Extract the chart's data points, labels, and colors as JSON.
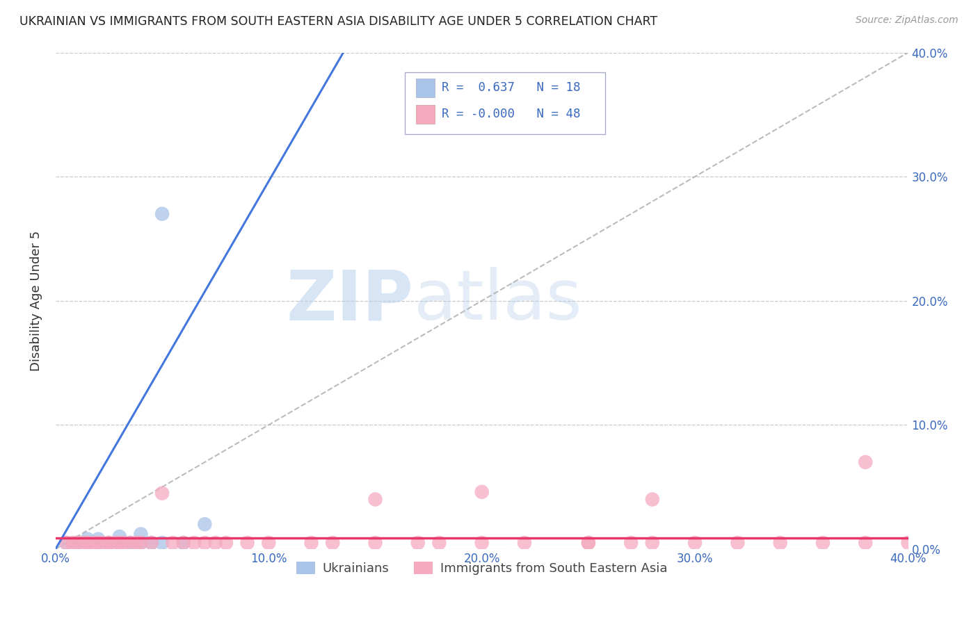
{
  "title": "UKRAINIAN VS IMMIGRANTS FROM SOUTH EASTERN ASIA DISABILITY AGE UNDER 5 CORRELATION CHART",
  "source": "Source: ZipAtlas.com",
  "ylabel": "Disability Age Under 5",
  "xlim": [
    0.0,
    0.4
  ],
  "ylim": [
    0.0,
    0.4
  ],
  "xticks": [
    0.0,
    0.1,
    0.2,
    0.3,
    0.4
  ],
  "yticks": [
    0.0,
    0.1,
    0.2,
    0.3,
    0.4
  ],
  "background_color": "#ffffff",
  "grid_color": "#c8c8c8",
  "ukrainians_R": 0.637,
  "ukrainians_N": 18,
  "immigrants_R": -0.0,
  "immigrants_N": 48,
  "legend_label_1": "Ukrainians",
  "legend_label_2": "Immigrants from South Eastern Asia",
  "color_blue": "#aac4e8",
  "color_pink": "#f5aac0",
  "line_blue": "#4477dd",
  "line_pink": "#e8356a",
  "watermark_color": "#ccdff5",
  "watermark": "ZIPatlas",
  "ukrainians_x": [
    0.005,
    0.01,
    0.01,
    0.015,
    0.015,
    0.02,
    0.02,
    0.025,
    0.03,
    0.03,
    0.035,
    0.04,
    0.04,
    0.045,
    0.05,
    0.06,
    0.07,
    0.05
  ],
  "ukrainians_y": [
    0.005,
    0.005,
    0.005,
    0.008,
    0.005,
    0.005,
    0.008,
    0.005,
    0.005,
    0.01,
    0.005,
    0.005,
    0.012,
    0.005,
    0.005,
    0.005,
    0.02,
    0.27
  ],
  "blue_line_x": [
    0.0,
    0.135
  ],
  "blue_line_y": [
    0.0,
    0.4
  ],
  "pink_line_x": [
    0.0,
    0.4
  ],
  "pink_line_y": [
    0.009,
    0.009
  ],
  "immigrants_x": [
    0.005,
    0.008,
    0.01,
    0.012,
    0.015,
    0.015,
    0.018,
    0.02,
    0.022,
    0.025,
    0.025,
    0.028,
    0.03,
    0.032,
    0.035,
    0.038,
    0.04,
    0.045,
    0.05,
    0.055,
    0.06,
    0.065,
    0.07,
    0.075,
    0.08,
    0.09,
    0.1,
    0.12,
    0.13,
    0.15,
    0.17,
    0.18,
    0.2,
    0.22,
    0.25,
    0.27,
    0.28,
    0.3,
    0.32,
    0.34,
    0.36,
    0.38,
    0.4,
    0.15,
    0.2,
    0.28,
    0.38,
    0.25
  ],
  "immigrants_y": [
    0.005,
    0.005,
    0.005,
    0.005,
    0.005,
    0.005,
    0.005,
    0.005,
    0.005,
    0.005,
    0.005,
    0.005,
    0.005,
    0.005,
    0.005,
    0.005,
    0.005,
    0.005,
    0.045,
    0.005,
    0.005,
    0.005,
    0.005,
    0.005,
    0.005,
    0.005,
    0.005,
    0.005,
    0.005,
    0.005,
    0.005,
    0.005,
    0.005,
    0.005,
    0.005,
    0.005,
    0.005,
    0.005,
    0.005,
    0.005,
    0.005,
    0.005,
    0.005,
    0.04,
    0.046,
    0.04,
    0.07,
    0.005
  ]
}
